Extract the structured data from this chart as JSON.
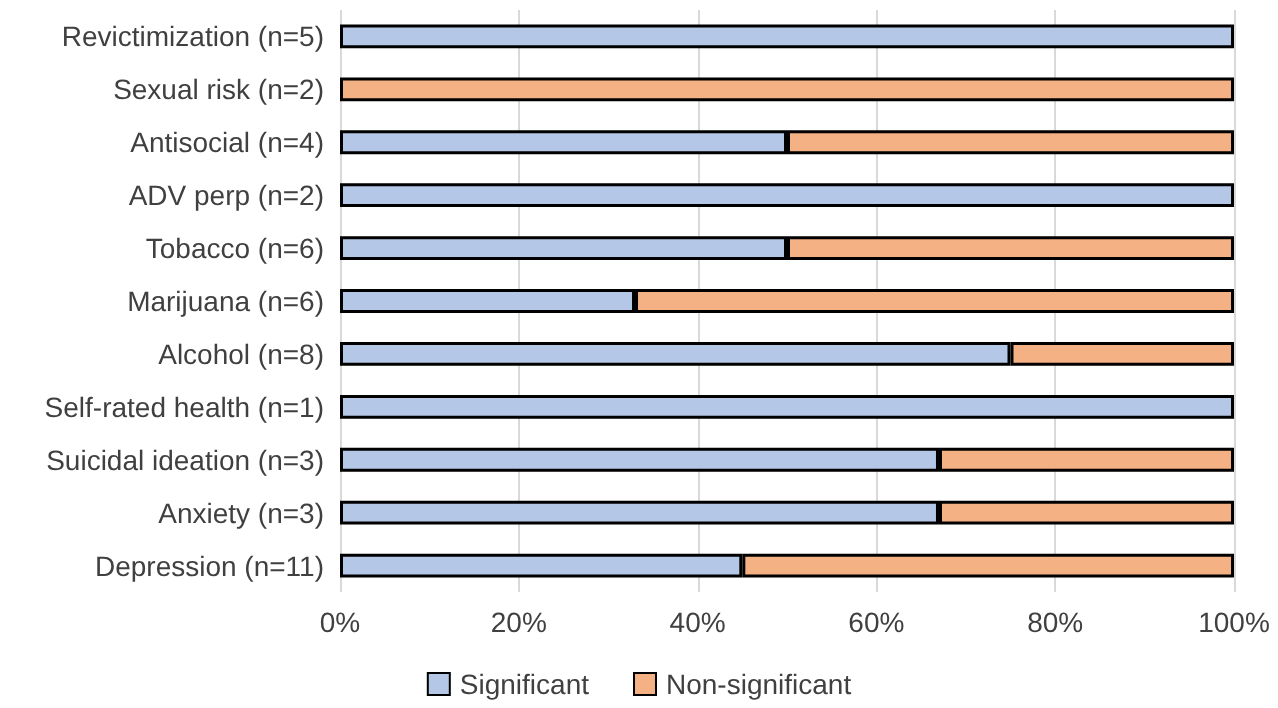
{
  "chart_data": {
    "type": "bar",
    "orientation": "horizontal",
    "stacked": true,
    "categories": [
      "Revictimization (n=5)",
      "Sexual risk (n=2)",
      "Antisocial (n=4)",
      "ADV perp (n=2)",
      "Tobacco (n=6)",
      "Marijuana (n=6)",
      "Alcohol (n=8)",
      "Self-rated health (n=1)",
      "Suicidal ideation (n=3)",
      "Anxiety (n=3)",
      "Depression (n=11)"
    ],
    "series": [
      {
        "name": "Significant",
        "color": "#b4c7e7",
        "values": [
          100,
          0,
          50,
          100,
          50,
          33,
          75,
          100,
          67,
          67,
          45
        ]
      },
      {
        "name": "Non-significant",
        "color": "#f4b183",
        "values": [
          0,
          100,
          50,
          0,
          50,
          67,
          25,
          0,
          33,
          33,
          55
        ]
      }
    ],
    "xlim": [
      0,
      100
    ],
    "xticks": [
      {
        "value": 0,
        "label": "0%"
      },
      {
        "value": 20,
        "label": "20%"
      },
      {
        "value": 40,
        "label": "40%"
      },
      {
        "value": 60,
        "label": "60%"
      },
      {
        "value": 80,
        "label": "80%"
      },
      {
        "value": 100,
        "label": "100%"
      }
    ],
    "grid": "x",
    "legend": "bottom"
  }
}
